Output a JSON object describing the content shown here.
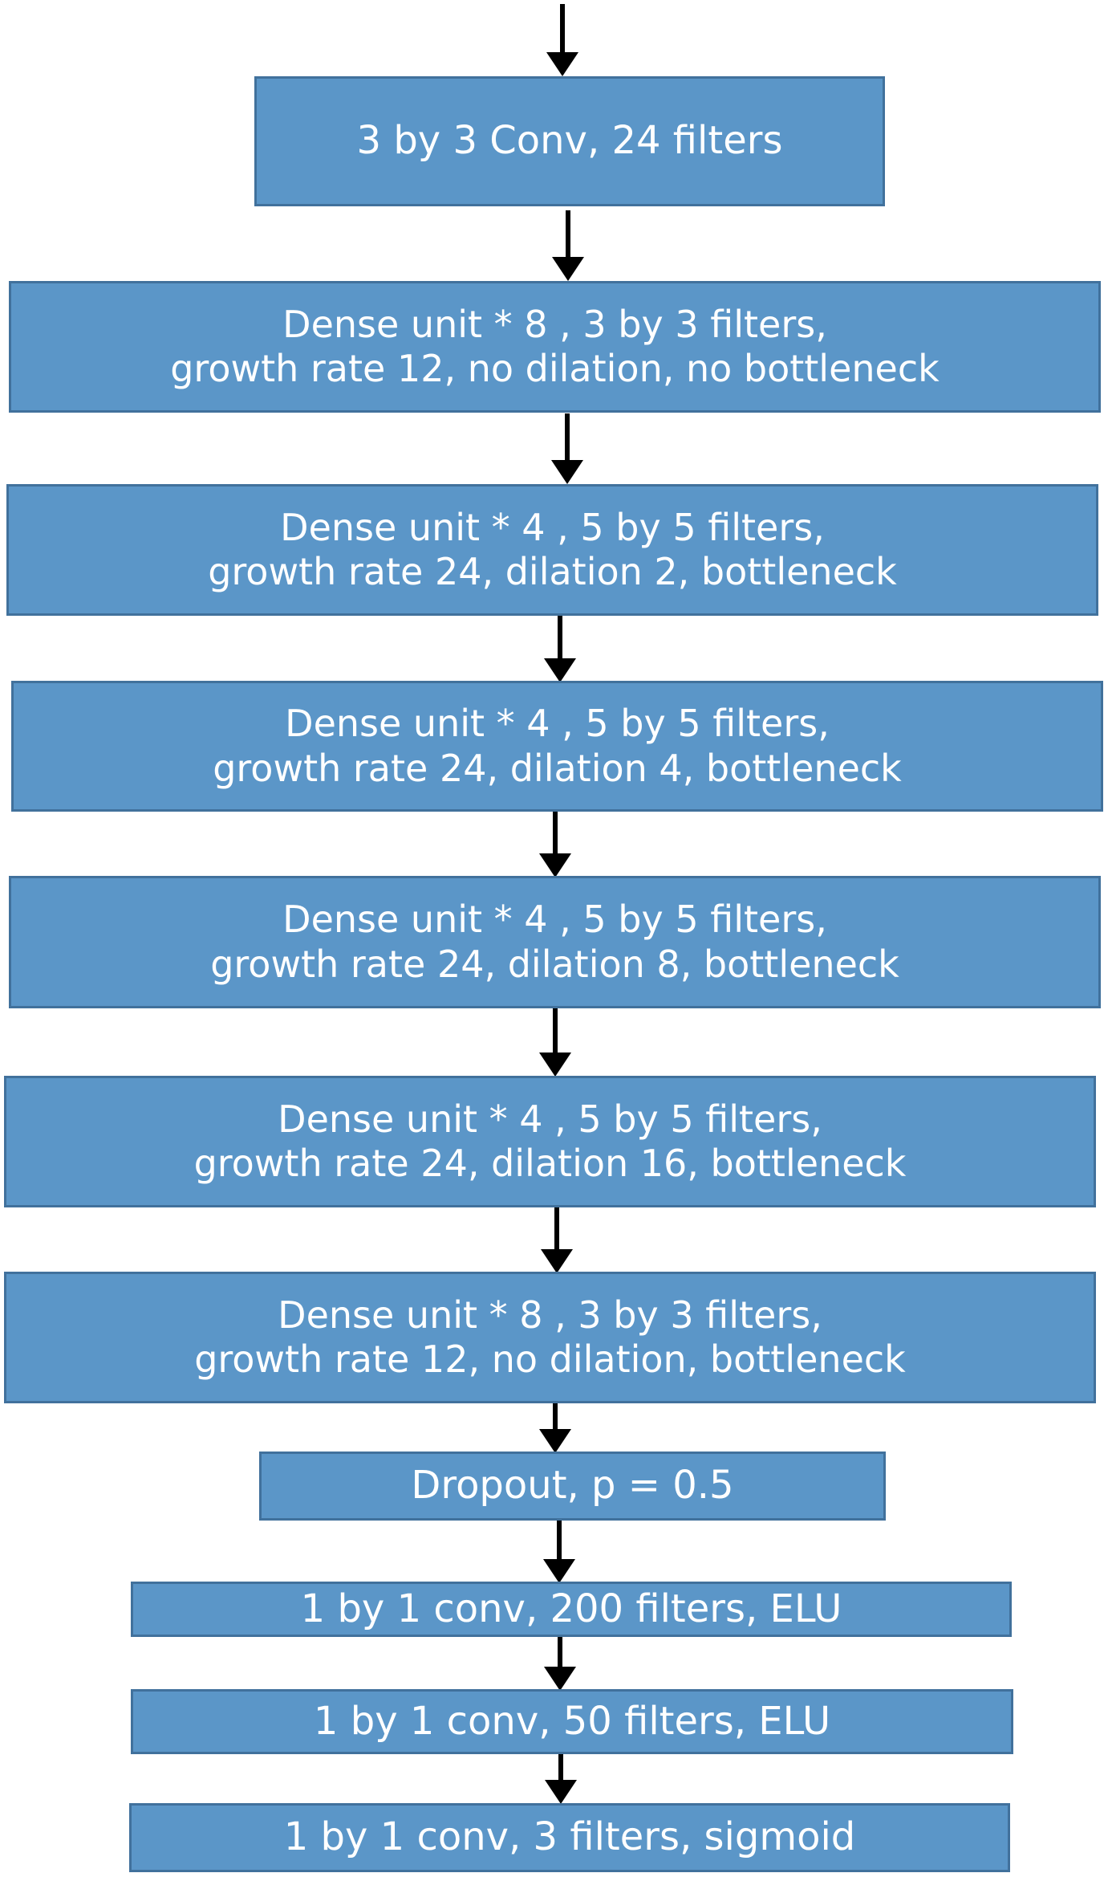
{
  "diagram": {
    "nodes": [
      {
        "id": "conv_in",
        "lines": [
          "3 by 3 Conv, 24 filters"
        ]
      },
      {
        "id": "dense_1",
        "lines": [
          "Dense unit * 8 , 3 by 3 filters,",
          "growth rate 12, no dilation, no bottleneck"
        ]
      },
      {
        "id": "dense_2",
        "lines": [
          "Dense unit * 4 , 5 by 5 filters,",
          "growth rate 24, dilation 2, bottleneck"
        ]
      },
      {
        "id": "dense_3",
        "lines": [
          "Dense unit * 4 , 5 by 5 filters,",
          "growth rate 24, dilation 4, bottleneck"
        ]
      },
      {
        "id": "dense_4",
        "lines": [
          "Dense unit * 4 , 5 by 5 filters,",
          "growth rate 24, dilation 8, bottleneck"
        ]
      },
      {
        "id": "dense_5",
        "lines": [
          "Dense unit * 4 , 5 by 5 filters,",
          "growth rate 24, dilation 16, bottleneck"
        ]
      },
      {
        "id": "dense_6",
        "lines": [
          "Dense unit * 8 , 3 by 3 filters,",
          "growth rate 12, no dilation, bottleneck"
        ]
      },
      {
        "id": "dropout",
        "lines": [
          "Dropout, p = 0.5"
        ]
      },
      {
        "id": "conv_200",
        "lines": [
          "1 by 1 conv, 200 filters, ELU"
        ]
      },
      {
        "id": "conv_50",
        "lines": [
          "1 by 1 conv, 50 filters, ELU"
        ]
      },
      {
        "id": "conv_3",
        "lines": [
          "1 by 1 conv, 3 filters, sigmoid"
        ]
      }
    ],
    "colors": {
      "box_fill": "#5b96c8",
      "box_border": "#41719c",
      "text": "#ffffff",
      "arrow": "#000000"
    }
  }
}
